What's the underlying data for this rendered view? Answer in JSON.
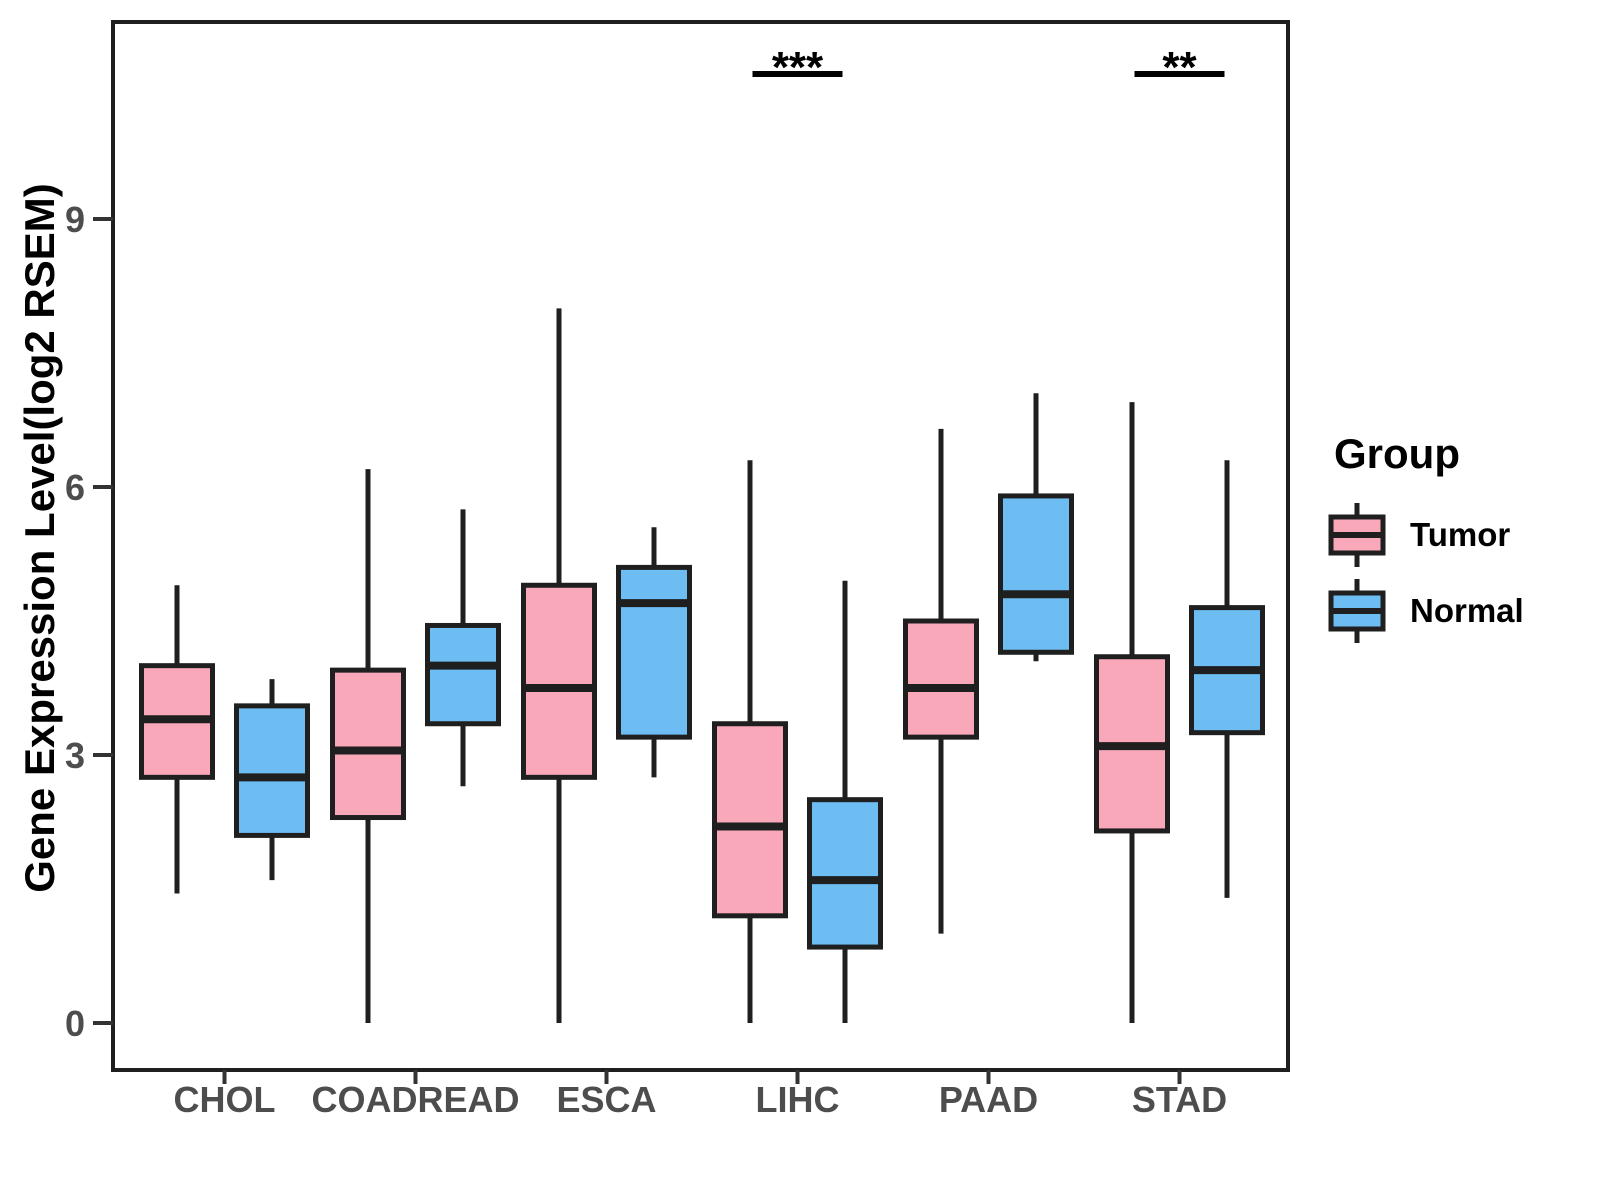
{
  "figure": {
    "background": "#ffffff",
    "line_color": "#1f1f1f",
    "tick_text_color": "#4d4d4d"
  },
  "chart_data": {
    "type": "grouped_boxplot",
    "title": "",
    "xlabel": "",
    "ylabel": "Gene Expression Level(log2 RSEM)",
    "ylim": [
      -0.5,
      11.2
    ],
    "yticks": [
      0,
      3,
      6,
      9
    ],
    "grid": false,
    "categories": [
      "CHOL",
      "COADREAD",
      "ESCA",
      "LIHC",
      "PAAD",
      "STAD"
    ],
    "groups": [
      {
        "name": "Tumor",
        "color": "#F9A8BA"
      },
      {
        "name": "Normal",
        "color": "#6DBDF3"
      }
    ],
    "series": [
      {
        "group": "Tumor",
        "boxes": [
          {
            "category": "CHOL",
            "whisker_low": 1.45,
            "q1": 2.75,
            "median": 3.4,
            "q3": 4.0,
            "whisker_high": 4.9
          },
          {
            "category": "COADREAD",
            "whisker_low": 0.0,
            "q1": 2.3,
            "median": 3.05,
            "q3": 3.95,
            "whisker_high": 6.2
          },
          {
            "category": "ESCA",
            "whisker_low": 0.0,
            "q1": 2.75,
            "median": 3.75,
            "q3": 4.9,
            "whisker_high": 8.0
          },
          {
            "category": "LIHC",
            "whisker_low": 0.0,
            "q1": 1.2,
            "median": 2.2,
            "q3": 3.35,
            "whisker_high": 6.3
          },
          {
            "category": "PAAD",
            "whisker_low": 1.0,
            "q1": 3.2,
            "median": 3.75,
            "q3": 4.5,
            "whisker_high": 6.65
          },
          {
            "category": "STAD",
            "whisker_low": 0.0,
            "q1": 2.15,
            "median": 3.1,
            "q3": 4.1,
            "whisker_high": 6.95
          }
        ]
      },
      {
        "group": "Normal",
        "boxes": [
          {
            "category": "CHOL",
            "whisker_low": 1.6,
            "q1": 2.1,
            "median": 2.75,
            "q3": 3.55,
            "whisker_high": 3.85
          },
          {
            "category": "COADREAD",
            "whisker_low": 2.65,
            "q1": 3.35,
            "median": 4.0,
            "q3": 4.45,
            "whisker_high": 5.75
          },
          {
            "category": "ESCA",
            "whisker_low": 2.75,
            "q1": 3.2,
            "median": 4.7,
            "q3": 5.1,
            "whisker_high": 5.55
          },
          {
            "category": "LIHC",
            "whisker_low": 0.0,
            "q1": 0.85,
            "median": 1.6,
            "q3": 2.5,
            "whisker_high": 4.95
          },
          {
            "category": "PAAD",
            "whisker_low": 4.05,
            "q1": 4.15,
            "median": 4.8,
            "q3": 5.9,
            "whisker_high": 7.05
          },
          {
            "category": "STAD",
            "whisker_low": 1.4,
            "q1": 3.25,
            "median": 3.95,
            "q3": 4.65,
            "whisker_high": 6.3
          }
        ]
      }
    ],
    "significance": [
      {
        "category": "LIHC",
        "label": "***"
      },
      {
        "category": "STAD",
        "label": "**"
      }
    ],
    "legend": {
      "title": "Group",
      "position": "right"
    }
  }
}
